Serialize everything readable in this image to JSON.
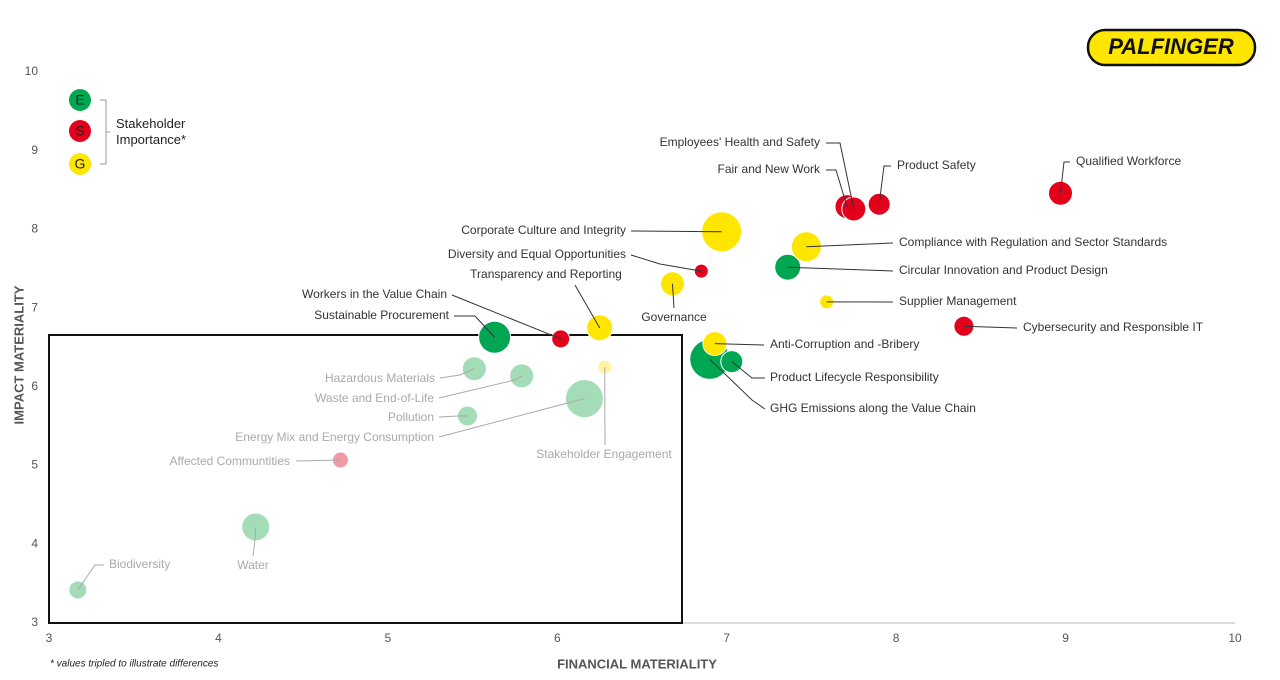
{
  "logo": "PALFINGER",
  "chart_data": {
    "type": "scatter",
    "x_label": "FINANCIAL MATERIALITY",
    "y_label": "IMPACT MATERIALITY",
    "legend_title": "Stakeholder Importance*",
    "footnote": "* values tripled to illustrate differences",
    "xlim": [
      3,
      10
    ],
    "xticks": [
      3,
      4,
      5,
      6,
      7,
      8,
      9,
      10
    ],
    "ylim": [
      3,
      10
    ],
    "yticks": [
      3,
      4,
      5,
      6,
      7,
      8,
      9,
      10
    ],
    "grid": false,
    "series": [
      {
        "name": "E",
        "color": "#00a651",
        "faded_color": "#a3dcb7",
        "labels": [
          "Circular Innovation and Product Design",
          "GHG Emissions along the Value Chain",
          "Product Lifecycle Responsibility",
          "Sustainable Procurement",
          "Hazardous Materials",
          "Waste and End-of-Life",
          "Pollution",
          "Energy Mix and Energy Consumption",
          "Water",
          "Biodiversity"
        ],
        "x": [
          7.36,
          6.9,
          7.03,
          5.63,
          5.51,
          5.79,
          5.47,
          6.16,
          4.22,
          3.17
        ],
        "values": [
          7.52,
          6.35,
          6.32,
          6.63,
          6.23,
          6.14,
          5.63,
          5.85,
          4.22,
          3.42
        ],
        "sizes": [
          6.5,
          10,
          5.5,
          8,
          6,
          6,
          5,
          9.5,
          7,
          4.5
        ],
        "faded": [
          false,
          false,
          false,
          false,
          true,
          true,
          true,
          true,
          true,
          true
        ]
      },
      {
        "name": "S",
        "color": "#e2001a",
        "faded_color": "#f19aa5",
        "labels": [
          "Fair and New Work",
          "Employees' Health and Safety",
          "Product Safety",
          "Qualified Workforce",
          "Cybersecurity and Responsible IT",
          "Diversity and Equal Opportunities",
          "Workers in the Value Chain",
          "Affected Communtities"
        ],
        "x": [
          7.71,
          7.75,
          7.9,
          8.97,
          8.4,
          6.85,
          6.02,
          4.72
        ],
        "values": [
          8.29,
          8.26,
          8.32,
          8.46,
          6.77,
          7.47,
          6.61,
          5.07
        ],
        "sizes": [
          6,
          6,
          5.5,
          6,
          5,
          3.5,
          4.5,
          4
        ],
        "faded": [
          false,
          false,
          false,
          false,
          false,
          false,
          false,
          true
        ]
      },
      {
        "name": "G",
        "color": "#ffe600",
        "faded_color": "#fff4a3",
        "labels": [
          "Corporate Culture and Integrity",
          "Compliance with Regulation and Sector Standards",
          "Supplier Management",
          "Governance",
          "Transparency and Reporting",
          "Anti-Corruption and -Bribery",
          "Stakeholder Engagement"
        ],
        "x": [
          6.97,
          7.47,
          7.59,
          6.68,
          6.25,
          6.93,
          6.28
        ],
        "values": [
          7.97,
          7.78,
          7.08,
          7.31,
          6.75,
          6.55,
          6.25
        ],
        "sizes": [
          10,
          7.5,
          3.5,
          6,
          6.5,
          6,
          3.5
        ],
        "faded": [
          false,
          false,
          false,
          false,
          false,
          false,
          true
        ]
      }
    ]
  }
}
